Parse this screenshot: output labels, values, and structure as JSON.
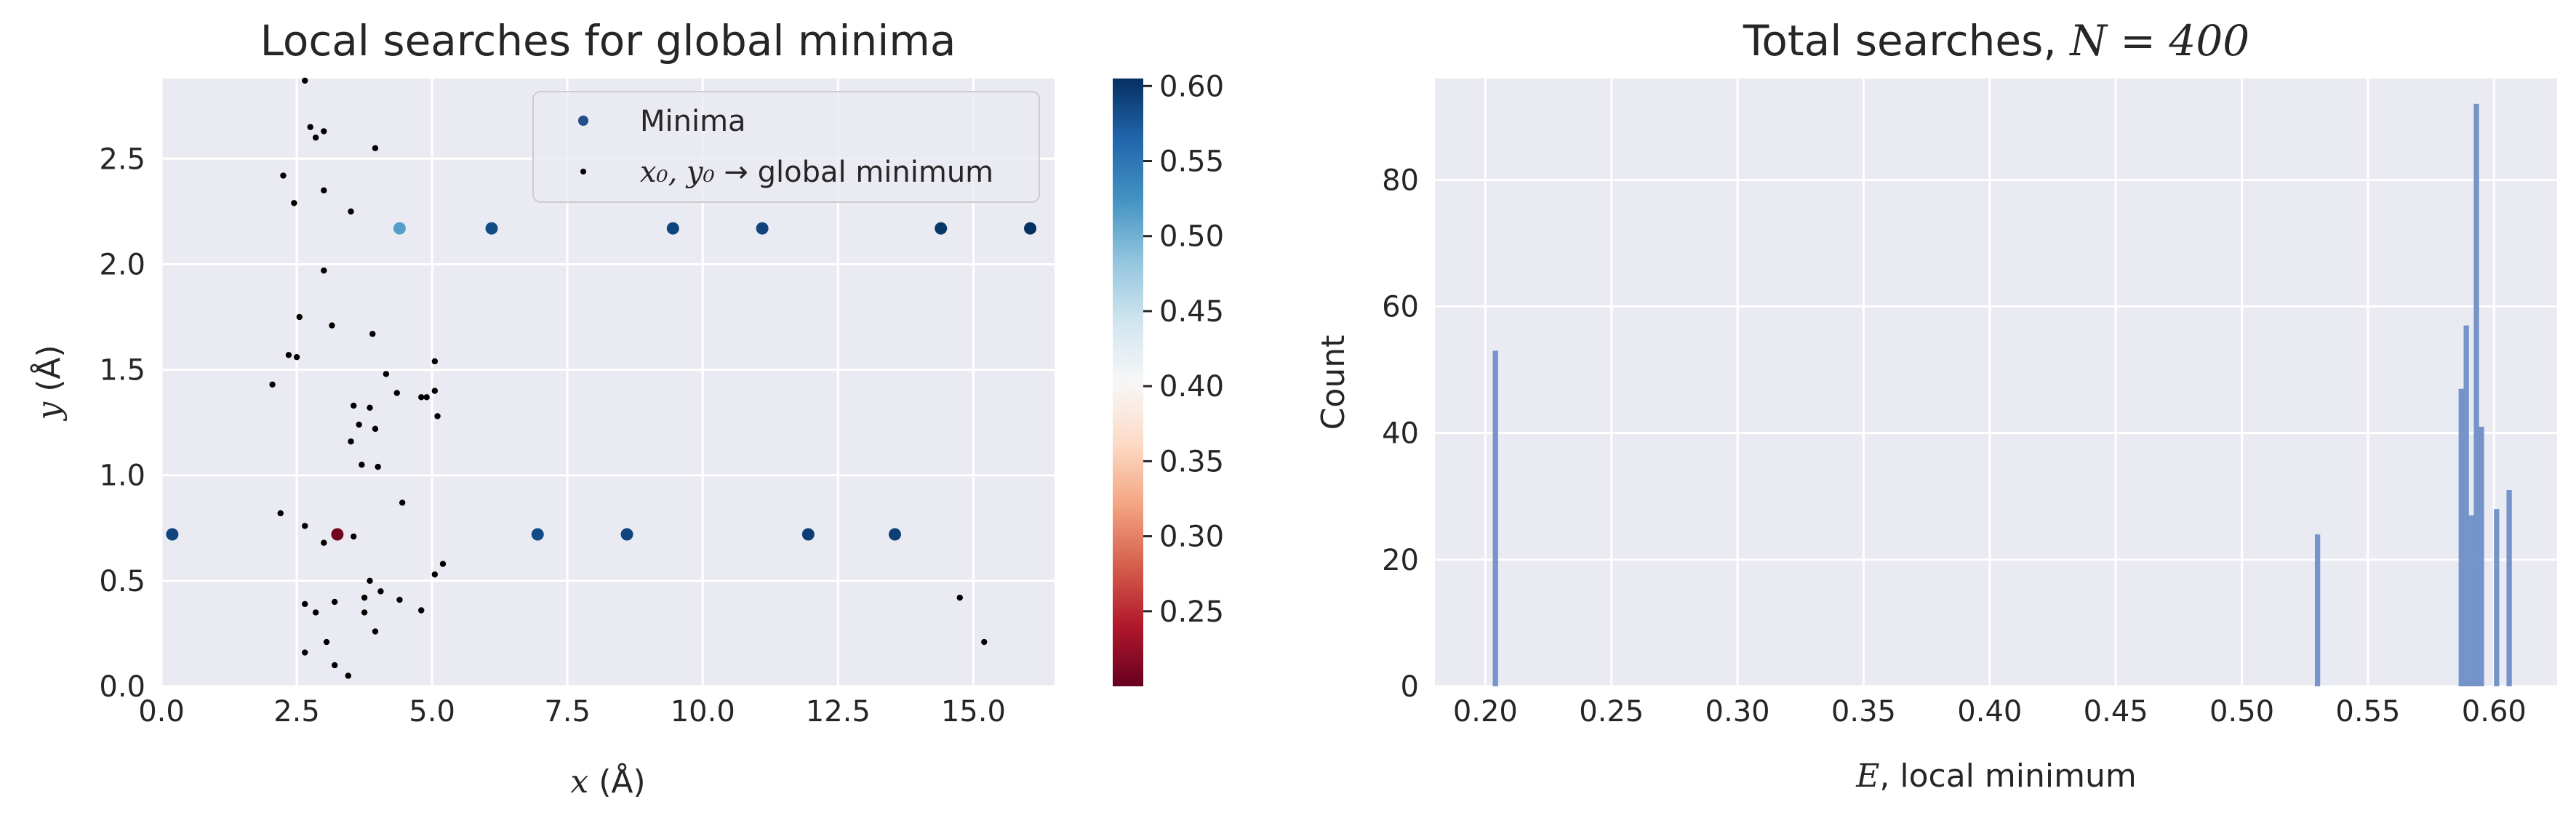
{
  "chart_data": [
    {
      "type": "scatter",
      "title": "Local searches for global minima",
      "xlabel_var": "x",
      "xlabel_unit": "(Å)",
      "ylabel_var": "y",
      "ylabel_unit": "(Å)",
      "xlim": [
        0,
        16.5
      ],
      "ylim": [
        0,
        2.88
      ],
      "xticks": [
        0.0,
        2.5,
        5.0,
        7.5,
        10.0,
        12.5,
        15.0
      ],
      "xtick_labels": [
        "0.0",
        "2.5",
        "5.0",
        "7.5",
        "10.0",
        "12.5",
        "15.0"
      ],
      "yticks": [
        0.0,
        0.5,
        1.0,
        1.5,
        2.0,
        2.5
      ],
      "ytick_labels": [
        "0.0",
        "0.5",
        "1.0",
        "1.5",
        "2.0",
        "2.5"
      ],
      "grid": true,
      "legend_placement": "top-right",
      "series": [
        {
          "name": "Minima",
          "color": "#1f4e89",
          "points": [
            {
              "x": 0.2,
              "y": 0.72,
              "E": 0.59
            },
            {
              "x": 3.25,
              "y": 0.72,
              "E": 0.205
            },
            {
              "x": 4.4,
              "y": 2.17,
              "E": 0.515
            },
            {
              "x": 6.1,
              "y": 2.17,
              "E": 0.585
            },
            {
              "x": 6.95,
              "y": 0.72,
              "E": 0.585
            },
            {
              "x": 8.6,
              "y": 0.72,
              "E": 0.59
            },
            {
              "x": 9.45,
              "y": 2.17,
              "E": 0.59
            },
            {
              "x": 11.1,
              "y": 2.17,
              "E": 0.59
            },
            {
              "x": 11.95,
              "y": 0.72,
              "E": 0.595
            },
            {
              "x": 13.55,
              "y": 0.72,
              "E": 0.595
            },
            {
              "x": 14.4,
              "y": 2.17,
              "E": 0.6
            },
            {
              "x": 16.05,
              "y": 2.17,
              "E": 0.605
            }
          ]
        },
        {
          "name_prefix": "x₀, y₀",
          "name_suffix": "→ global minimum",
          "color": "#000000",
          "points": [
            [
              2.65,
              2.87
            ],
            [
              2.75,
              2.65
            ],
            [
              2.85,
              2.6
            ],
            [
              3.0,
              2.63
            ],
            [
              3.95,
              2.55
            ],
            [
              2.25,
              2.42
            ],
            [
              2.45,
              2.29
            ],
            [
              3.0,
              2.35
            ],
            [
              3.5,
              2.25
            ],
            [
              3.0,
              1.97
            ],
            [
              2.55,
              1.75
            ],
            [
              3.15,
              1.71
            ],
            [
              3.9,
              1.67
            ],
            [
              2.35,
              1.57
            ],
            [
              2.5,
              1.56
            ],
            [
              4.15,
              1.48
            ],
            [
              5.05,
              1.54
            ],
            [
              2.05,
              1.43
            ],
            [
              4.35,
              1.39
            ],
            [
              4.8,
              1.37
            ],
            [
              4.9,
              1.37
            ],
            [
              5.05,
              1.4
            ],
            [
              3.55,
              1.33
            ],
            [
              3.85,
              1.32
            ],
            [
              5.1,
              1.28
            ],
            [
              3.65,
              1.24
            ],
            [
              3.95,
              1.22
            ],
            [
              3.5,
              1.16
            ],
            [
              3.7,
              1.05
            ],
            [
              4.0,
              1.04
            ],
            [
              4.45,
              0.87
            ],
            [
              2.2,
              0.82
            ],
            [
              2.65,
              0.76
            ],
            [
              3.55,
              0.71
            ],
            [
              3.0,
              0.68
            ],
            [
              5.2,
              0.58
            ],
            [
              5.05,
              0.53
            ],
            [
              3.85,
              0.5
            ],
            [
              4.05,
              0.45
            ],
            [
              3.75,
              0.42
            ],
            [
              4.4,
              0.41
            ],
            [
              2.65,
              0.39
            ],
            [
              3.2,
              0.4
            ],
            [
              2.85,
              0.35
            ],
            [
              3.75,
              0.35
            ],
            [
              4.8,
              0.36
            ],
            [
              3.95,
              0.26
            ],
            [
              3.05,
              0.21
            ],
            [
              2.65,
              0.16
            ],
            [
              3.2,
              0.1
            ],
            [
              3.45,
              0.05
            ],
            [
              14.75,
              0.42
            ],
            [
              15.2,
              0.21
            ]
          ]
        }
      ],
      "colorbar": {
        "colormap": "RdBu",
        "range": [
          0.2,
          0.605
        ],
        "ticks": [
          0.25,
          0.3,
          0.35,
          0.4,
          0.45,
          0.5,
          0.55,
          0.6
        ],
        "tick_labels": [
          "0.25",
          "0.30",
          "0.35",
          "0.40",
          "0.45",
          "0.50",
          "0.55",
          "0.60"
        ]
      }
    },
    {
      "type": "bar",
      "title_prefix": "Total searches, ",
      "title_math": "N = 400",
      "xlabel_var": "E",
      "xlabel_text": ", local minimum",
      "ylabel": "Count",
      "xlim": [
        0.18,
        0.625
      ],
      "ylim": [
        0,
        96
      ],
      "xticks": [
        0.2,
        0.25,
        0.3,
        0.35,
        0.4,
        0.45,
        0.5,
        0.55,
        0.6
      ],
      "xtick_labels": [
        "0.20",
        "0.25",
        "0.30",
        "0.35",
        "0.40",
        "0.45",
        "0.50",
        "0.55",
        "0.60"
      ],
      "yticks": [
        0,
        20,
        40,
        60,
        80
      ],
      "ytick_labels": [
        "0",
        "20",
        "40",
        "60",
        "80"
      ],
      "grid": true,
      "color": "#6f8fc6",
      "bin_width": 0.0021,
      "bars": [
        {
          "x": 0.204,
          "count": 53
        },
        {
          "x": 0.53,
          "count": 24
        },
        {
          "x": 0.587,
          "count": 47
        },
        {
          "x": 0.589,
          "count": 57
        },
        {
          "x": 0.591,
          "count": 27
        },
        {
          "x": 0.593,
          "count": 92
        },
        {
          "x": 0.595,
          "count": 41
        },
        {
          "x": 0.601,
          "count": 28
        },
        {
          "x": 0.606,
          "count": 31
        }
      ]
    }
  ]
}
